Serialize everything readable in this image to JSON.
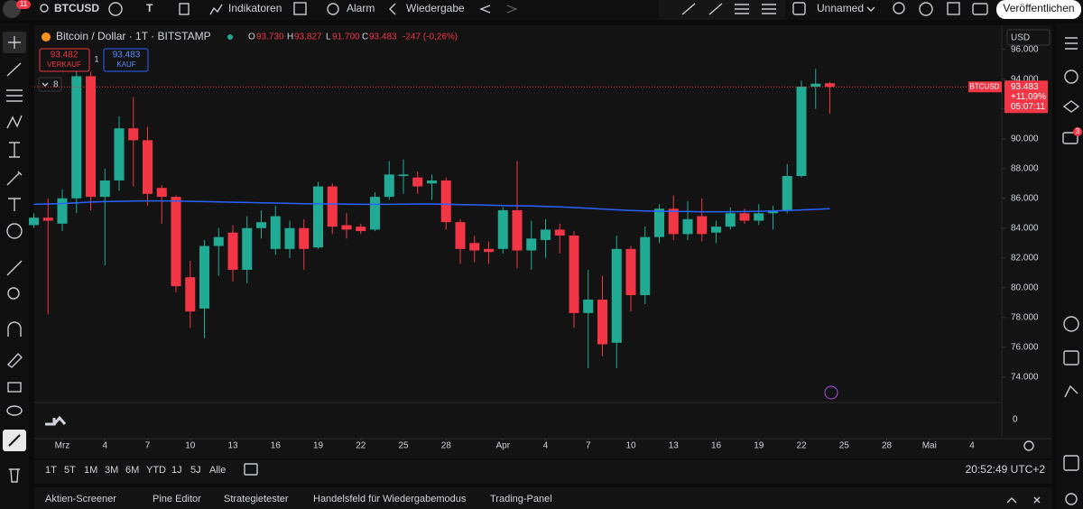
{
  "toolbar": {
    "notif": "11",
    "symbol": "BTCUSD",
    "interval": "T",
    "indicators": "Indikatoren",
    "alarm": "Alarm",
    "replay": "Wiedergabe",
    "layout": "Unnamed",
    "publish": "Veröffentlichen"
  },
  "legend": {
    "o_label": "O",
    "o": "93.730",
    "h_label": "H",
    "h": "93.827",
    "l_label": "L",
    "l": "91.700",
    "c_label": "C",
    "c": "93.483",
    "change": "-247 (-0,26%)"
  },
  "trade": {
    "sell_price": "93.482",
    "sell": "VERKAUF",
    "qty": "1",
    "buy_price": "93.483",
    "buy": "KAUF"
  },
  "indicator_count": "8",
  "currency": "USD",
  "volume_zero": "0",
  "timeframes": [
    "1T",
    "5T",
    "1M",
    "3M",
    "6M",
    "YTD",
    "1J",
    "5J",
    "Alle"
  ],
  "clock": "20:52:49 UTC+2",
  "tabs": [
    "Aktien-Screener",
    "Pine Editor",
    "Strategietester",
    "Handelsfeld für Wiedergabemodus",
    "Trading-Panel"
  ],
  "sidebar_badge": "3",
  "chart_data": {
    "type": "candlestick",
    "title": "Bitcoin / Dollar · 1T · BITSTAMP",
    "up_color": "#22ab94",
    "down_color": "#f23645",
    "open": [
      84200,
      84700,
      84300,
      86000,
      94200,
      86100,
      87200,
      90700,
      89900,
      86700,
      86100,
      80700,
      78600,
      82800,
      83700,
      81200,
      84000,
      82600,
      82600,
      84000,
      82700,
      86800,
      84200,
      84100,
      83900,
      86100,
      87500,
      87400,
      87000,
      87200,
      84400,
      83000,
      82600,
      82600,
      85200,
      82500,
      83200,
      83900,
      83500,
      78300,
      79200,
      76300,
      82600,
      79500,
      83400,
      85300,
      83600,
      84800,
      83700,
      84100,
      85000,
      84500,
      85000,
      85200,
      87500,
      93500,
      93730
    ],
    "high": [
      85000,
      86000,
      86600,
      94500,
      94500,
      88000,
      91500,
      92800,
      90800,
      86900,
      86200,
      81800,
      83200,
      84000,
      84200,
      84800,
      85200,
      85500,
      84500,
      84600,
      87100,
      87000,
      85000,
      84300,
      86400,
      88500,
      88600,
      87800,
      87600,
      87400,
      84600,
      83500,
      83100,
      85400,
      88500,
      84500,
      84600,
      84300,
      83800,
      81200,
      80800,
      83500,
      82800,
      84100,
      85600,
      86200,
      85800,
      86000,
      84500,
      85400,
      85300,
      85600,
      85500,
      88300,
      93900,
      94700,
      93827
    ],
    "low": [
      84000,
      78200,
      83800,
      85000,
      85200,
      81500,
      86500,
      86800,
      85500,
      84300,
      79700,
      77300,
      76600,
      80800,
      80400,
      80300,
      83300,
      82200,
      82000,
      81200,
      82600,
      83600,
      83300,
      83600,
      83800,
      85900,
      86300,
      86300,
      85900,
      83900,
      81600,
      81700,
      81600,
      82300,
      81300,
      81200,
      82000,
      82300,
      77300,
      74600,
      75400,
      74600,
      78400,
      78900,
      83000,
      83200,
      83200,
      83100,
      83000,
      83900,
      84300,
      84200,
      83900,
      85000,
      87400,
      92000,
      91700
    ],
    "close": [
      84700,
      84500,
      86000,
      94200,
      86100,
      87200,
      90700,
      89900,
      86300,
      86100,
      80100,
      78400,
      82800,
      83400,
      81200,
      84000,
      84400,
      84800,
      84000,
      82600,
      86800,
      84100,
      83900,
      83800,
      86100,
      87600,
      87600,
      86800,
      87200,
      84400,
      82600,
      82500,
      82400,
      85200,
      82500,
      83300,
      83900,
      83500,
      78300,
      79200,
      76200,
      82600,
      79500,
      83400,
      85300,
      83600,
      84600,
      83600,
      84100,
      85000,
      84500,
      85000,
      85200,
      87500,
      93500,
      93700,
      93483
    ],
    "ma": {
      "color": "#2962ff",
      "values": [
        85600,
        85620,
        85650,
        85700,
        85750,
        85780,
        85800,
        85820,
        85830,
        85830,
        85820,
        85800,
        85780,
        85760,
        85740,
        85720,
        85700,
        85680,
        85660,
        85640,
        85630,
        85620,
        85610,
        85600,
        85600,
        85600,
        85610,
        85620,
        85620,
        85600,
        85580,
        85560,
        85540,
        85520,
        85500,
        85480,
        85450,
        85420,
        85380,
        85330,
        85280,
        85230,
        85180,
        85150,
        85130,
        85120,
        85110,
        85100,
        85100,
        85100,
        85110,
        85130,
        85150,
        85180,
        85220,
        85260,
        85300
      ]
    },
    "xlim": [
      0,
      68
    ],
    "xticks": [
      {
        "value": 2,
        "label": "Mrz"
      },
      {
        "value": 5,
        "label": "4"
      },
      {
        "value": 8,
        "label": "7"
      },
      {
        "value": 11,
        "label": "10"
      },
      {
        "value": 14,
        "label": "13"
      },
      {
        "value": 17,
        "label": "16"
      },
      {
        "value": 20,
        "label": "19"
      },
      {
        "value": 23,
        "label": "22"
      },
      {
        "value": 26,
        "label": "25"
      },
      {
        "value": 29,
        "label": "28"
      },
      {
        "value": 33,
        "label": "Apr"
      },
      {
        "value": 36,
        "label": "4"
      },
      {
        "value": 39,
        "label": "7"
      },
      {
        "value": 42,
        "label": "10"
      },
      {
        "value": 45,
        "label": "13"
      },
      {
        "value": 48,
        "label": "16"
      },
      {
        "value": 51,
        "label": "19"
      },
      {
        "value": 54,
        "label": "22"
      },
      {
        "value": 57,
        "label": "25"
      },
      {
        "value": 60,
        "label": "28"
      },
      {
        "value": 63,
        "label": "Mai"
      },
      {
        "value": 66,
        "label": "4"
      }
    ],
    "ylim": [
      72350,
      97500
    ],
    "yticks": [
      {
        "value": 74000,
        "label": "74.000"
      },
      {
        "value": 76000,
        "label": "76.000"
      },
      {
        "value": 78000,
        "label": "78.000"
      },
      {
        "value": 80000,
        "label": "80.000"
      },
      {
        "value": 82000,
        "label": "82.000"
      },
      {
        "value": 84000,
        "label": "84.000"
      },
      {
        "value": 86000,
        "label": "86.000"
      },
      {
        "value": 88000,
        "label": "88.000"
      },
      {
        "value": 90000,
        "label": "90.000"
      },
      {
        "value": 92000,
        "label": "92.000"
      },
      {
        "value": 94000,
        "label": "94.000"
      },
      {
        "value": 96000,
        "label": "96.000"
      }
    ],
    "grid": false,
    "last_price": {
      "value": 93483,
      "label": "93.483"
    },
    "symbol_tag": "BTCUSD",
    "change_pct": "+11,09%",
    "countdown": "05:07:11"
  }
}
